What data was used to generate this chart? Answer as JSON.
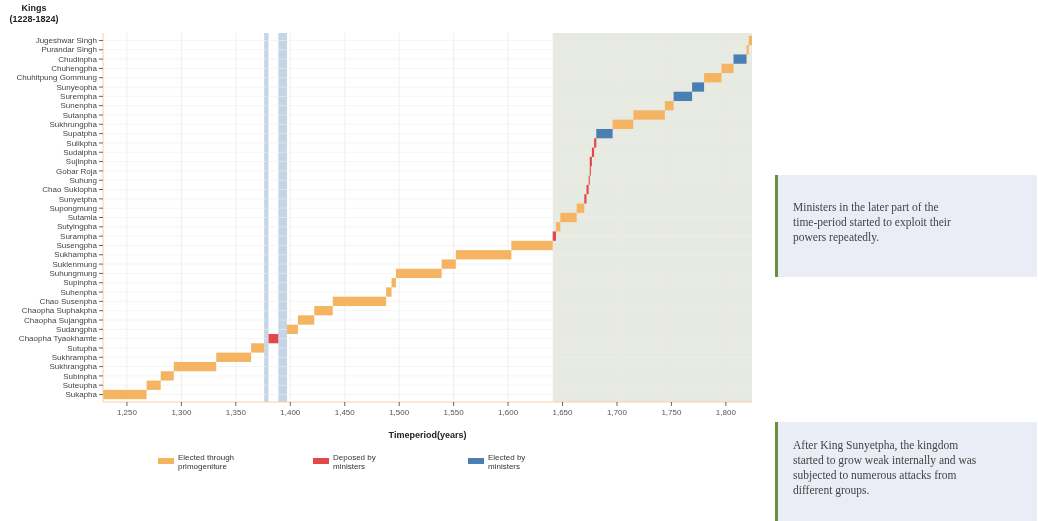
{
  "chart_data": {
    "type": "bar",
    "orientation": "horizontal",
    "ylabel": "Kings\n(1228-1824)",
    "xlabel": "Timeperiod(years)",
    "categories": [
      "Jugeshwar Singh",
      "Purandar Singh",
      "Chudinpha",
      "Chuhengpha",
      "Chuhitpung Gommung",
      "Sunyeopha",
      "Surempha",
      "Sunenpha",
      "Sutanpha",
      "Sukhrungpha",
      "Supatpha",
      "Sulikpha",
      "Sudaipha",
      "Sujinpha",
      "Gobar Roja",
      "Suhung",
      "Chao Suklopha",
      "Sunyetpha",
      "Supongmung",
      "Sutamla",
      "Sutyingpha",
      "Surampha",
      "Susengpha",
      "Sukhampha",
      "Suklenmung",
      "Suhungmung",
      "Supinpha",
      "Suhenpha",
      "Chao Susenpha",
      "Chaopha Suphakpha",
      "Chaopha Sujangpha",
      "Sudangpha",
      "Chaopha Tyaokhamte",
      "Sutupha",
      "Sukhrampha",
      "Sukhrangpha",
      "Subinpha",
      "Suteupha",
      "Sukapha"
    ],
    "series": [
      {
        "name": "Elected through primogeniture",
        "color": "#f5b461",
        "base": [
          1821,
          1819,
          null,
          1796,
          1780,
          null,
          null,
          1744,
          1715,
          1696,
          null,
          null,
          null,
          null,
          null,
          null,
          null,
          null,
          1663,
          1648,
          1644,
          null,
          1603,
          1552,
          1539,
          1497,
          1493,
          1488,
          1439,
          1422,
          1407,
          1397,
          null,
          1364,
          1332,
          1293,
          1281,
          1268,
          1228
        ],
        "values": [
          3,
          2,
          null,
          11,
          16,
          null,
          null,
          8,
          29,
          19,
          null,
          null,
          null,
          null,
          null,
          null,
          null,
          null,
          7,
          15,
          4,
          null,
          38,
          51,
          13,
          42,
          4,
          5,
          49,
          17,
          15,
          10,
          null,
          12,
          32,
          39,
          12,
          13,
          40
        ]
      },
      {
        "name": "Deposed by ministers",
        "color": "#e4474a",
        "base": [
          null,
          null,
          null,
          null,
          null,
          null,
          null,
          null,
          null,
          null,
          null,
          1679,
          1677,
          1675,
          1675,
          1674,
          1672,
          1670,
          null,
          null,
          null,
          1641,
          null,
          null,
          null,
          null,
          null,
          null,
          null,
          null,
          null,
          null,
          1380,
          null,
          null,
          null,
          null,
          null,
          null
        ],
        "values": [
          null,
          null,
          null,
          null,
          null,
          null,
          null,
          null,
          null,
          null,
          null,
          2,
          2,
          2,
          1,
          1,
          2,
          2,
          null,
          null,
          null,
          3,
          null,
          null,
          null,
          null,
          null,
          null,
          null,
          null,
          null,
          null,
          9,
          null,
          null,
          null,
          null,
          null,
          null
        ]
      },
      {
        "name": "Elected by ministers",
        "color": "#4a7fb5",
        "base": [
          null,
          null,
          1807,
          null,
          null,
          1769,
          1752,
          null,
          null,
          null,
          1681,
          null,
          null,
          null,
          null,
          null,
          null,
          null,
          null,
          null,
          null,
          null,
          null,
          null,
          null,
          null,
          null,
          null,
          null,
          null,
          null,
          null,
          null,
          null,
          null,
          null,
          null,
          null,
          null
        ],
        "values": [
          null,
          null,
          12,
          null,
          null,
          11,
          17,
          null,
          null,
          null,
          15,
          null,
          null,
          null,
          null,
          null,
          null,
          null,
          null,
          null,
          null,
          null,
          null,
          null,
          null,
          null,
          null,
          null,
          null,
          null,
          null,
          null,
          null,
          null,
          null,
          null,
          null,
          null,
          null
        ]
      }
    ],
    "xlim": [
      1228,
      1824
    ],
    "xticks": [
      {
        "value": 1250,
        "label": "1,250"
      },
      {
        "value": 1300,
        "label": "1,300"
      },
      {
        "value": 1350,
        "label": "1,350"
      },
      {
        "value": 1400,
        "label": "1,400"
      },
      {
        "value": 1450,
        "label": "1,450"
      },
      {
        "value": 1500,
        "label": "1,500"
      },
      {
        "value": 1550,
        "label": "1,550"
      },
      {
        "value": 1600,
        "label": "1,600"
      },
      {
        "value": 1650,
        "label": "1,650"
      },
      {
        "value": 1700,
        "label": "1,700"
      },
      {
        "value": 1750,
        "label": "1,750"
      },
      {
        "value": 1800,
        "label": "1,800"
      }
    ],
    "bands": [
      {
        "axis": "x",
        "from": 1376,
        "to": 1380,
        "color": "#c5d5e6"
      },
      {
        "axis": "x",
        "from": 1389,
        "to": 1397,
        "color": "#c5d5e6"
      },
      {
        "axis": "x",
        "from": 1641,
        "to": 1824,
        "color": "#e7eae0"
      }
    ],
    "grid": true,
    "legend": "bottom",
    "annotations": [
      "Ministers in the later part of the time-period started to exploit their powers repeatedly.",
      "After King Sunyetpha, the kingdom started to grow weak internally and was subjected to numerous attacks from different groups."
    ]
  }
}
